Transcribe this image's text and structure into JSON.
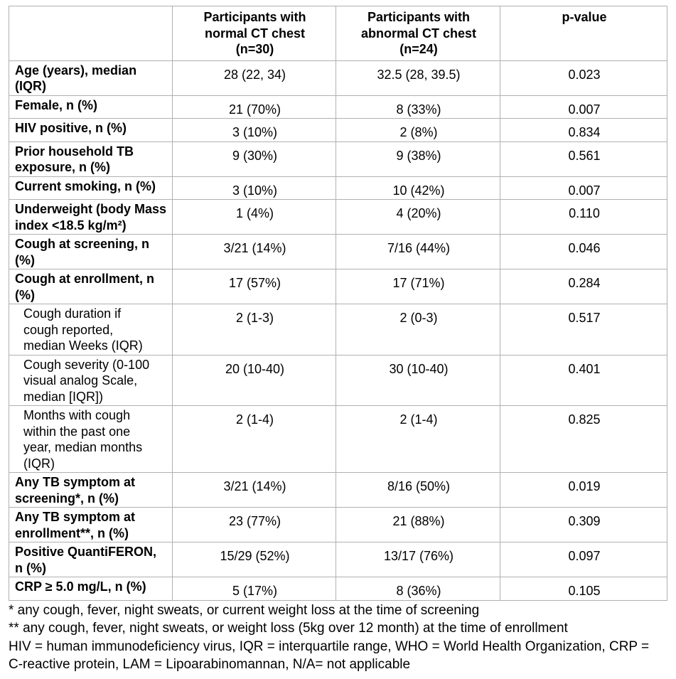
{
  "table": {
    "header": [
      "Participants with\nnormal CT chest\n(n=30)",
      "Participants with\nabnormal CT chest\n(n=24)",
      "p-value"
    ],
    "rows": [
      [
        "Age (years), median (IQR)",
        "28 (22, 34)",
        "32.5 (28, 39.5)",
        "0.023"
      ],
      [
        "Female, n (%)",
        "21 (70%)",
        "8 (33%)",
        "0.007"
      ],
      [
        "HIV positive, n (%)",
        "3 (10%)",
        "2 (8%)",
        "0.834"
      ],
      [
        "Prior household TB exposure, n (%)",
        "9 (30%)",
        "9 (38%)",
        "0.561"
      ],
      [
        "Current smoking, n (%)",
        "3 (10%)",
        "10 (42%)",
        "0.007"
      ],
      [
        "Underweight (body Mass index <18.5 kg/m²)",
        "1 (4%)",
        "4 (20%)",
        "0.110"
      ],
      [
        "Cough at screening, n (%)",
        "3/21 (14%)",
        "7/16 (44%)",
        "0.046"
      ],
      [
        "Cough at enrollment, n (%)",
        "17 (57%)",
        "17 (71%)",
        "0.284"
      ],
      [
        "Cough duration if cough reported, median Weeks (IQR)",
        "2 (1-3)",
        "2 (0-3)",
        "0.517"
      ],
      [
        "Cough severity (0-100 visual analog Scale, median [IQR])",
        "20 (10-40)",
        "30 (10-40)",
        "0.401"
      ],
      [
        "Months with cough within the past one year, median months (IQR)",
        "2 (1-4)",
        "2 (1-4)",
        "0.825"
      ],
      [
        "Any TB symptom at screening*, n (%)",
        "3/21 (14%)",
        "8/16 (50%)",
        "0.019"
      ],
      [
        "Any TB symptom at enrollment**, n (%)",
        "23 (77%)",
        "21 (88%)",
        "0.309"
      ],
      [
        "Positive QuantiFERON, n (%)",
        "15/29 (52%)",
        "13/17 (76%)",
        "0.097"
      ],
      [
        "CRP ≥ 5.0 mg/L, n (%)",
        "5 (17%)",
        "8 (36%)",
        "0.105"
      ]
    ]
  },
  "footnotes": [
    "* any cough, fever, night sweats, or current weight loss at the time of screening",
    "** any cough, fever, night sweats, or weight loss (5kg over 12 month) at the time of enrollment",
    "HIV = human immunodeficiency virus, IQR = interquartile range, WHO = World Health Organization, CRP = C-reactive protein, LAM = Lipoarabinomannan, N/A= not applicable"
  ]
}
